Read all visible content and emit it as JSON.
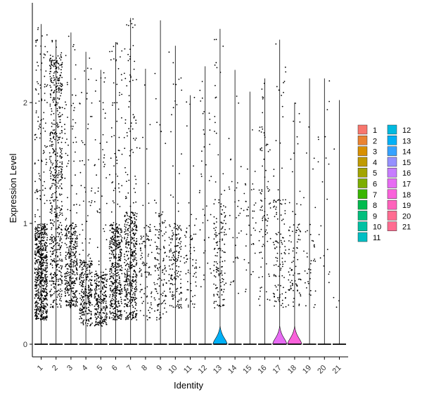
{
  "chart_data": {
    "type": "violin",
    "xlabel": "Identity",
    "ylabel": "Expression Level",
    "ylim": [
      -0.1,
      2.8
    ],
    "yticks": [
      0,
      1,
      2
    ],
    "grid": false,
    "legend_position": "right",
    "categories": [
      "1",
      "2",
      "3",
      "4",
      "5",
      "6",
      "7",
      "8",
      "9",
      "10",
      "11",
      "12",
      "13",
      "14",
      "15",
      "16",
      "17",
      "18",
      "19",
      "20",
      "21"
    ],
    "colors": [
      "#F8766D",
      "#EA8331",
      "#D89000",
      "#C09B00",
      "#A3A500",
      "#7CAE00",
      "#39B600",
      "#00BB4E",
      "#00BF7D",
      "#00C1A3",
      "#00BFC4",
      "#00BAE0",
      "#00B0F6",
      "#35A2FF",
      "#9590FF",
      "#C77CFF",
      "#E76BF3",
      "#FA62DB",
      "#FF62BC",
      "#FF6C91",
      "#FF6C91"
    ],
    "groups": [
      {
        "id": "1",
        "max": 2.65,
        "point_count": 700,
        "dense_low": 0.2,
        "dense_high": 1.0
      },
      {
        "id": "2",
        "max": 2.52,
        "point_count": 600,
        "dense_low": 0.3,
        "dense_high": 2.4
      },
      {
        "id": "3",
        "max": 2.58,
        "point_count": 380,
        "dense_low": 0.3,
        "dense_high": 1.0
      },
      {
        "id": "4",
        "max": 2.42,
        "point_count": 300,
        "dense_low": 0.15,
        "dense_high": 0.7
      },
      {
        "id": "5",
        "max": 2.27,
        "point_count": 280,
        "dense_low": 0.15,
        "dense_high": 0.6
      },
      {
        "id": "6",
        "max": 2.5,
        "point_count": 460,
        "dense_low": 0.2,
        "dense_high": 1.0
      },
      {
        "id": "7",
        "max": 2.7,
        "point_count": 470,
        "dense_low": 0.2,
        "dense_high": 1.1
      },
      {
        "id": "8",
        "max": 2.28,
        "point_count": 100,
        "dense_low": 0.2,
        "dense_high": 1.0
      },
      {
        "id": "9",
        "max": 2.68,
        "point_count": 130,
        "dense_low": 0.2,
        "dense_high": 1.1
      },
      {
        "id": "10",
        "max": 2.47,
        "point_count": 170,
        "dense_low": 0.3,
        "dense_high": 1.0
      },
      {
        "id": "11",
        "max": 2.06,
        "point_count": 70,
        "dense_low": 0.3,
        "dense_high": 1.0
      },
      {
        "id": "12",
        "max": 2.3,
        "point_count": 40,
        "dense_low": 0.4,
        "dense_high": 2.2
      },
      {
        "id": "13",
        "max": 2.61,
        "point_count": 150,
        "dense_low": 0.3,
        "dense_high": 1.2
      },
      {
        "id": "14",
        "max": 2.27,
        "point_count": 35,
        "dense_low": 0.4,
        "dense_high": 1.4
      },
      {
        "id": "15",
        "max": 2.09,
        "point_count": 40,
        "dense_low": 0.4,
        "dense_high": 1.5
      },
      {
        "id": "16",
        "max": 2.2,
        "point_count": 90,
        "dense_low": 0.3,
        "dense_high": 1.8
      },
      {
        "id": "17",
        "max": 2.52,
        "point_count": 120,
        "dense_low": 0.3,
        "dense_high": 1.2
      },
      {
        "id": "18",
        "max": 2.0,
        "point_count": 90,
        "dense_low": 0.3,
        "dense_high": 1.0
      },
      {
        "id": "19",
        "max": 2.2,
        "point_count": 40,
        "dense_low": 0.3,
        "dense_high": 1.0
      },
      {
        "id": "20",
        "max": 2.2,
        "point_count": 20,
        "dense_low": 0.5,
        "dense_high": 2.2
      },
      {
        "id": "21",
        "max": 2.02,
        "point_count": 4,
        "dense_low": 0.15,
        "dense_high": 0.5
      }
    ],
    "zero_bulge_groups": [
      "13",
      "17",
      "18"
    ]
  }
}
